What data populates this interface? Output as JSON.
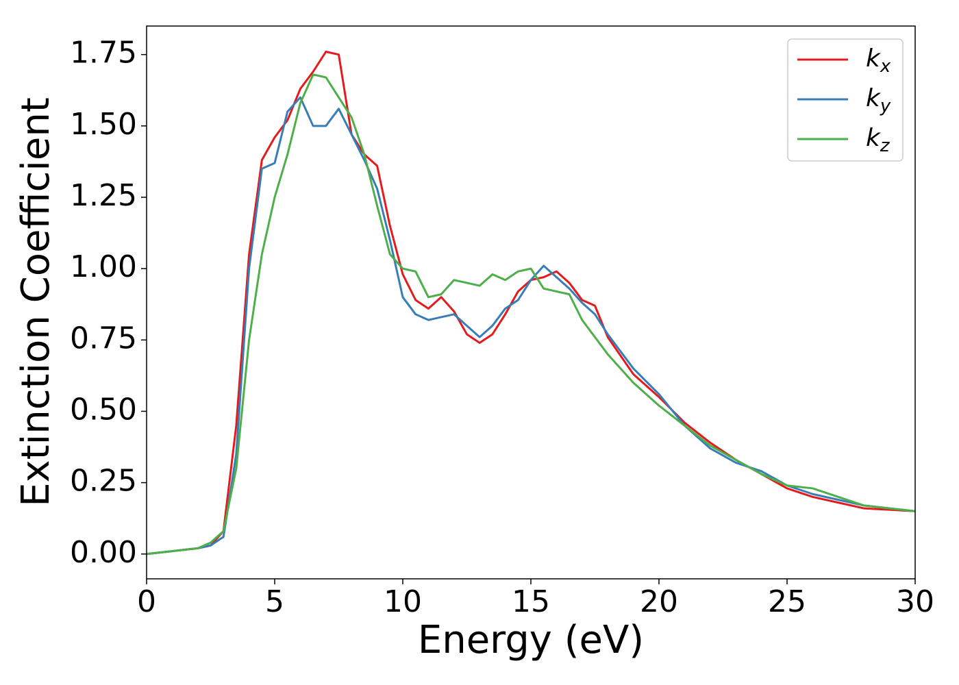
{
  "chart_data": {
    "type": "line",
    "x_label": "Energy (eV)",
    "y_label": "Extinction Coefficient",
    "x": [
      0,
      1,
      2,
      2.5,
      3,
      3.5,
      4,
      4.5,
      5,
      5.5,
      6,
      6.5,
      7,
      7.5,
      8,
      8.5,
      9,
      9.5,
      10,
      10.5,
      11,
      11.5,
      12,
      12.5,
      13,
      13.5,
      14,
      14.5,
      15,
      15.5,
      16,
      16.5,
      17,
      17.5,
      18,
      19,
      20,
      21,
      22,
      23,
      24,
      25,
      26,
      27,
      28,
      29,
      30
    ],
    "series": [
      {
        "name": "kx",
        "color": "#e41a1c",
        "values": [
          0,
          0.01,
          0.02,
          0.03,
          0.08,
          0.45,
          1.05,
          1.38,
          1.46,
          1.52,
          1.63,
          1.69,
          1.76,
          1.75,
          1.47,
          1.4,
          1.36,
          1.15,
          0.98,
          0.89,
          0.86,
          0.9,
          0.85,
          0.77,
          0.74,
          0.77,
          0.84,
          0.92,
          0.96,
          0.97,
          0.99,
          0.95,
          0.89,
          0.87,
          0.76,
          0.63,
          0.55,
          0.46,
          0.39,
          0.33,
          0.28,
          0.23,
          0.2,
          0.18,
          0.16,
          0.155,
          0.15
        ]
      },
      {
        "name": "ky",
        "color": "#377eb8",
        "values": [
          0,
          0.01,
          0.02,
          0.03,
          0.06,
          0.35,
          1.0,
          1.35,
          1.37,
          1.55,
          1.6,
          1.5,
          1.5,
          1.56,
          1.47,
          1.38,
          1.28,
          1.1,
          0.9,
          0.84,
          0.82,
          0.83,
          0.84,
          0.8,
          0.76,
          0.8,
          0.86,
          0.89,
          0.96,
          1.01,
          0.97,
          0.93,
          0.88,
          0.84,
          0.77,
          0.65,
          0.56,
          0.45,
          0.37,
          0.32,
          0.29,
          0.24,
          0.21,
          0.19,
          0.17,
          0.16,
          0.15
        ]
      },
      {
        "name": "kz",
        "color": "#4daf4a",
        "values": [
          0,
          0.01,
          0.02,
          0.04,
          0.08,
          0.3,
          0.75,
          1.05,
          1.25,
          1.4,
          1.58,
          1.68,
          1.67,
          1.6,
          1.53,
          1.4,
          1.22,
          1.05,
          1.0,
          0.99,
          0.9,
          0.91,
          0.96,
          0.95,
          0.94,
          0.98,
          0.96,
          0.99,
          1.0,
          0.93,
          0.92,
          0.91,
          0.82,
          0.76,
          0.7,
          0.6,
          0.52,
          0.45,
          0.38,
          0.33,
          0.28,
          0.24,
          0.23,
          0.2,
          0.17,
          0.16,
          0.15
        ]
      }
    ],
    "xlim": [
      0,
      30
    ],
    "xticks": [
      0,
      5,
      10,
      15,
      20,
      25,
      30
    ],
    "ylim": [
      -0.087,
      1.85
    ],
    "yticks": [
      {
        "value": 0,
        "label": "0.00"
      },
      0.25,
      {
        "value": 0.5,
        "label": "0.50"
      },
      0.75,
      {
        "value": 1,
        "label": "1.00"
      },
      1.25,
      {
        "value": 1.5,
        "label": "1.50"
      },
      1.75
    ],
    "grid": false,
    "legend": "upper right"
  }
}
